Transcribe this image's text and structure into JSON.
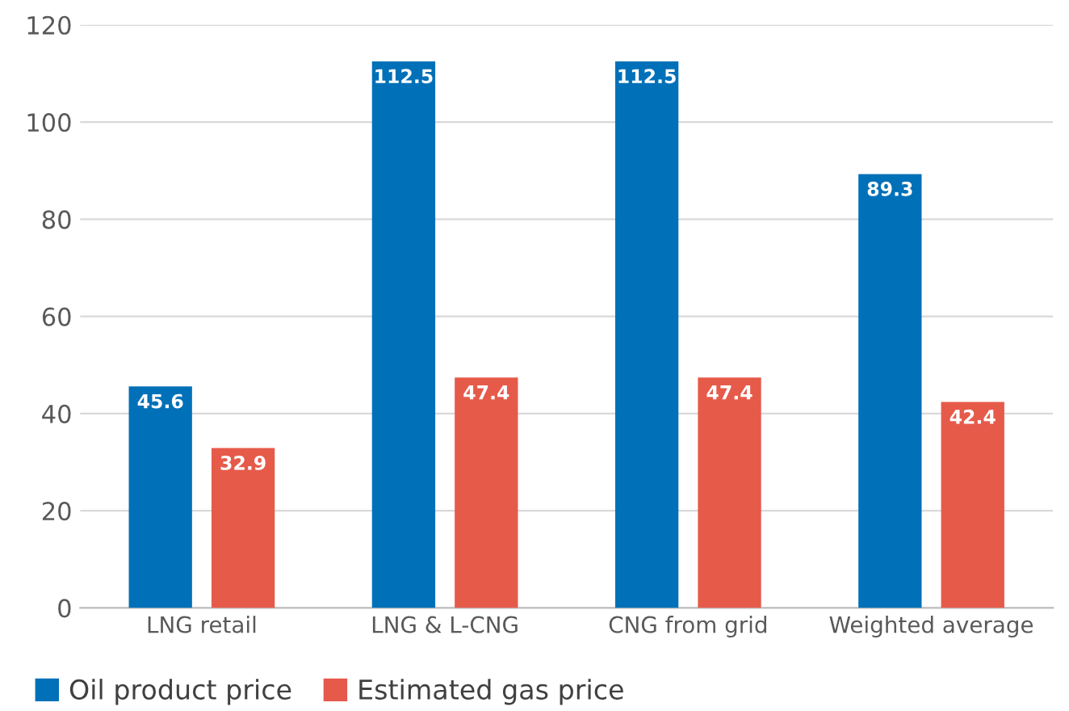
{
  "chart_data": {
    "type": "bar",
    "categories": [
      "LNG retail",
      "LNG & L-CNG",
      "CNG from grid",
      "Weighted average"
    ],
    "series": [
      {
        "name": "Oil product price",
        "color": "#0070b8",
        "values": [
          45.6,
          112.5,
          112.5,
          89.3
        ]
      },
      {
        "name": "Estimated gas price",
        "color": "#e65a4a",
        "values": [
          32.9,
          47.4,
          47.4,
          42.4
        ]
      }
    ],
    "ylim": [
      0,
      120
    ],
    "yticks": [
      0,
      20,
      40,
      60,
      80,
      100,
      120
    ],
    "grid": "y",
    "legend": "bottom left",
    "data_labels": true
  }
}
